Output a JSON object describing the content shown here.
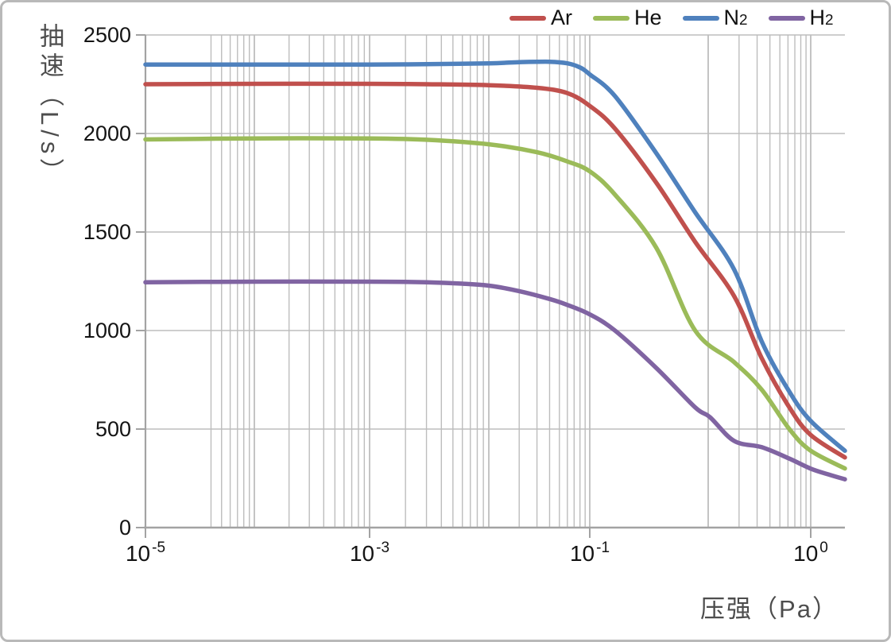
{
  "axis_titles": {
    "y": "抽速（L/s）",
    "x": "压强（Pa）"
  },
  "legend": {
    "position": "top-right",
    "items": [
      {
        "name": "Ar",
        "label": "Ar",
        "sub": "",
        "color": "#C0504D"
      },
      {
        "name": "He",
        "label": "He",
        "sub": "",
        "color": "#9BBB59"
      },
      {
        "name": "N2",
        "label": "N",
        "sub": "2",
        "color": "#4F81BD"
      },
      {
        "name": "H2",
        "label": "H",
        "sub": "2",
        "color": "#8064A2"
      }
    ]
  },
  "chart_data": {
    "type": "line",
    "title": "",
    "xlabel": "压强（Pa）",
    "ylabel": "抽速（L/s）",
    "x_axis": {
      "scale": "log",
      "unit": "Pa",
      "range_log10": [
        -5,
        0.155
      ],
      "labeled_ticks": [
        {
          "log10": -5,
          "base": "10",
          "exponent": "-5"
        },
        {
          "log10": -3,
          "base": "10",
          "exponent": "-3"
        },
        {
          "log10": -1,
          "base": "10",
          "exponent": "-1"
        },
        {
          "log10": 0,
          "base": "10",
          "exponent": "0"
        }
      ],
      "major_gridline_log10": [
        -5,
        -4,
        -3,
        -2,
        -1,
        -0.5,
        0
      ],
      "minor_gridlines": "log-bunched 2..9 per decade; none between 10^-1 and next major; starts at 4 in first decade"
    },
    "y_axis": {
      "unit": "L/s",
      "ylim": [
        0,
        2500
      ],
      "tick_step": 500,
      "tick_labels": [
        "0",
        "500",
        "1000",
        "1500",
        "2000",
        "2500"
      ],
      "grid": true
    },
    "series": [
      {
        "name": "Ar",
        "color": "#C0504D",
        "points": [
          [
            1e-05,
            2250
          ],
          [
            0.0001,
            2252
          ],
          [
            0.001,
            2252
          ],
          [
            0.003,
            2250
          ],
          [
            0.01,
            2245
          ],
          [
            0.03,
            2232
          ],
          [
            0.06,
            2205
          ],
          [
            0.1,
            2140
          ],
          [
            0.13,
            2025
          ],
          [
            0.2,
            1750
          ],
          [
            0.3,
            1450
          ],
          [
            0.45,
            1175
          ],
          [
            0.6,
            860
          ],
          [
            0.8,
            610
          ],
          [
            1.0,
            470
          ],
          [
            1.43,
            356
          ]
        ]
      },
      {
        "name": "He",
        "color": "#9BBB59",
        "points": [
          [
            1e-05,
            1970
          ],
          [
            0.0001,
            1975
          ],
          [
            0.001,
            1975
          ],
          [
            0.003,
            1968
          ],
          [
            0.01,
            1945
          ],
          [
            0.03,
            1905
          ],
          [
            0.06,
            1858
          ],
          [
            0.1,
            1808
          ],
          [
            0.13,
            1690
          ],
          [
            0.2,
            1420
          ],
          [
            0.3,
            1000
          ],
          [
            0.45,
            840
          ],
          [
            0.6,
            700
          ],
          [
            0.8,
            500
          ],
          [
            1.0,
            390
          ],
          [
            1.43,
            300
          ]
        ]
      },
      {
        "name": "N2",
        "color": "#4F81BD",
        "points": [
          [
            1e-05,
            2350
          ],
          [
            0.0001,
            2350
          ],
          [
            0.001,
            2350
          ],
          [
            0.003,
            2352
          ],
          [
            0.01,
            2356
          ],
          [
            0.02,
            2362
          ],
          [
            0.04,
            2364
          ],
          [
            0.06,
            2356
          ],
          [
            0.08,
            2335
          ],
          [
            0.1,
            2300
          ],
          [
            0.13,
            2190
          ],
          [
            0.2,
            1900
          ],
          [
            0.3,
            1600
          ],
          [
            0.45,
            1310
          ],
          [
            0.6,
            945
          ],
          [
            0.8,
            690
          ],
          [
            1.0,
            541
          ],
          [
            1.43,
            390
          ]
        ]
      },
      {
        "name": "H2",
        "color": "#8064A2",
        "points": [
          [
            1e-05,
            1245
          ],
          [
            0.0001,
            1248
          ],
          [
            0.001,
            1248
          ],
          [
            0.003,
            1245
          ],
          [
            0.006,
            1238
          ],
          [
            0.01,
            1228
          ],
          [
            0.02,
            1200
          ],
          [
            0.04,
            1160
          ],
          [
            0.06,
            1130
          ],
          [
            0.1,
            1082
          ],
          [
            0.13,
            1000
          ],
          [
            0.2,
            810
          ],
          [
            0.3,
            610
          ],
          [
            0.35,
            560
          ],
          [
            0.45,
            440
          ],
          [
            0.6,
            408
          ],
          [
            0.8,
            350
          ],
          [
            1.0,
            299
          ],
          [
            1.2,
            270
          ],
          [
            1.43,
            245
          ]
        ]
      }
    ],
    "style": {
      "grid_color": "#bdbdbd",
      "axis_color": "#a3a3a3",
      "line_width": 5.5
    }
  }
}
